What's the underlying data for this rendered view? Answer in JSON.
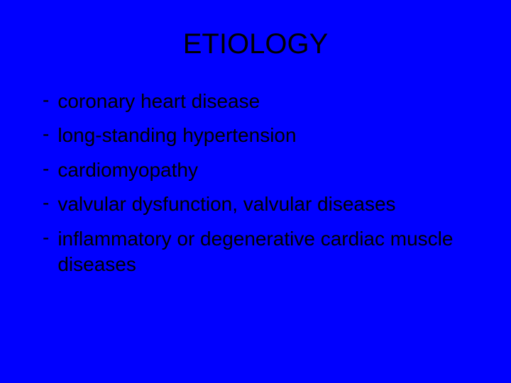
{
  "slide": {
    "background_color": "#0000ff",
    "text_color": "#000000",
    "title": {
      "text": "ETIOLOGY",
      "fontsize": 40
    },
    "bullets": {
      "marker": "-",
      "fontsize": 28,
      "items": [
        "coronary heart disease",
        "long-standing hypertension",
        " cardiomyopathy",
        "valvular dysfunction, valvular diseases",
        "inflammatory or degenerative cardiac muscle diseases"
      ]
    }
  }
}
